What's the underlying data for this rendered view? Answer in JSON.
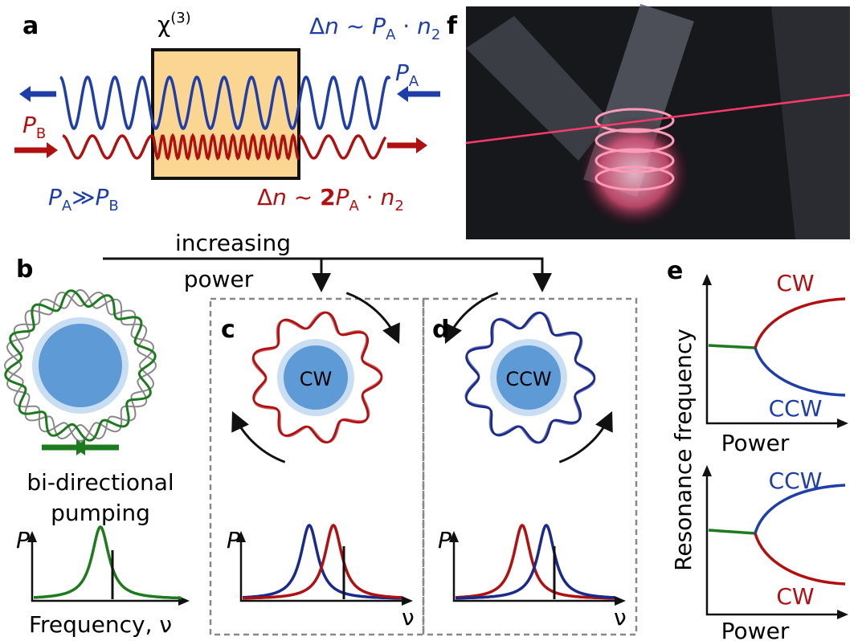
{
  "panels": {
    "a": "a",
    "b": "b",
    "c": "c",
    "d": "d",
    "e": "e",
    "f": "f"
  },
  "a": {
    "chi": [
      "χ",
      "(3)"
    ],
    "top_eq": [
      "Δ",
      "n",
      " ~ ",
      "P",
      "A",
      " · ",
      "n",
      "2"
    ],
    "pa": [
      "P",
      "A"
    ],
    "pb": [
      "P",
      "B"
    ],
    "cond": [
      "P",
      "A",
      "≫",
      "P",
      "B"
    ],
    "bottom_eq": [
      "Δ",
      "n",
      " ~ ",
      "2",
      "P",
      "A",
      " · ",
      "n",
      "2"
    ]
  },
  "flow": {
    "line1": "increasing",
    "line2": "power"
  },
  "b": {
    "line1": "bi-directional",
    "line2": "pumping",
    "y_label": "P",
    "x_label": "Frequency, ν"
  },
  "c": {
    "ring_label": "CW",
    "y_label": "P",
    "x_label": "ν"
  },
  "d": {
    "ring_label": "CCW",
    "y_label": "P",
    "x_label": "ν"
  },
  "e": {
    "y_label": "Resonance frequency",
    "top": {
      "upper": "CW",
      "lower": "CCW",
      "x_label": "Power"
    },
    "bottom": {
      "upper": "CCW",
      "lower": "CW",
      "x_label": "Power"
    }
  }
}
